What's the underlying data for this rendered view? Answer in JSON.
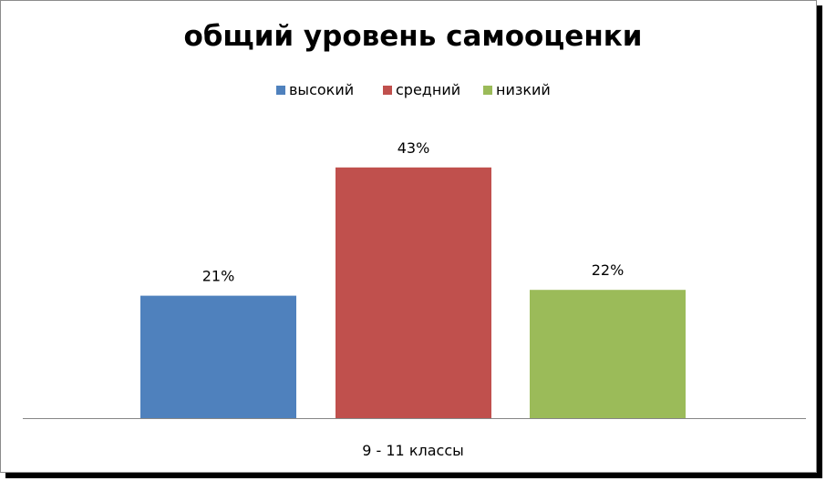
{
  "chart_data": {
    "type": "bar",
    "title": "общий уровень самооценки",
    "categories": [
      "9 - 11 классы"
    ],
    "series": [
      {
        "name": "высокий",
        "values": [
          21
        ],
        "label": "21%",
        "color": "#4F81BD"
      },
      {
        "name": "средний",
        "values": [
          43
        ],
        "label": "43%",
        "color": "#C0504D"
      },
      {
        "name": "низкий",
        "values": [
          22
        ],
        "label": "22%",
        "color": "#9BBB59"
      }
    ],
    "ylim": [
      0,
      50
    ],
    "grid": false,
    "legend_position": "top"
  }
}
